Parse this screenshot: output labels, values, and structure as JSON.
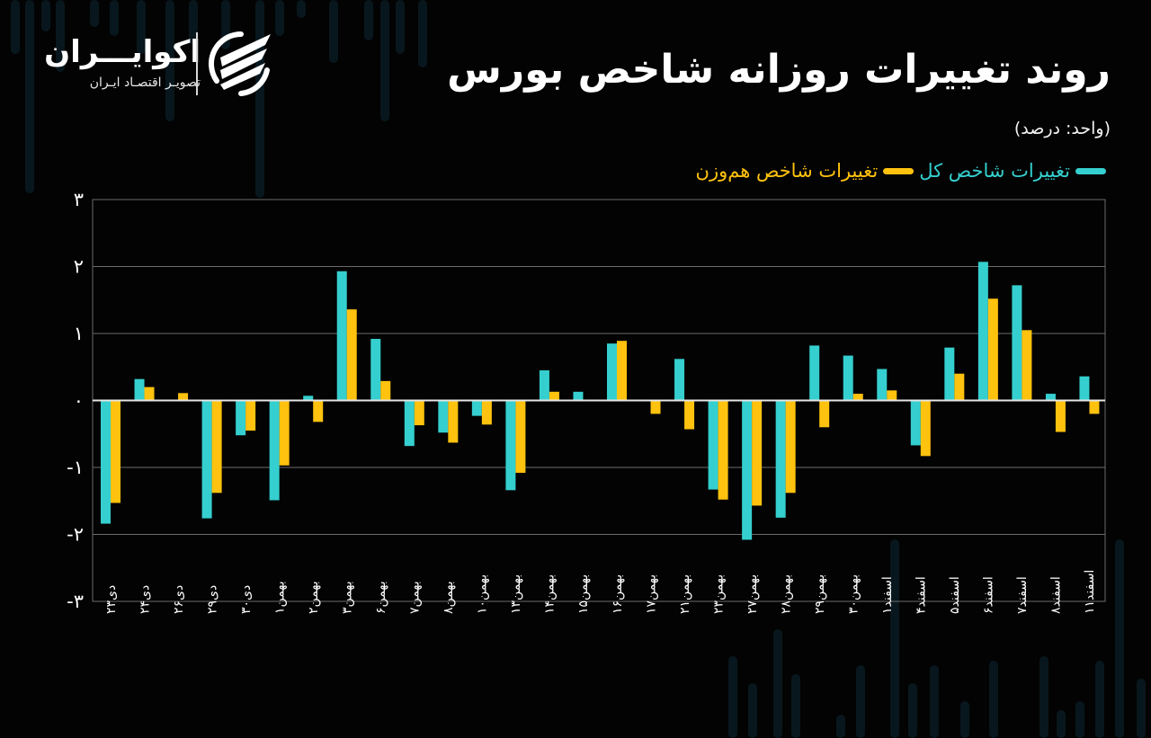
{
  "header": {
    "title": "روند تغییرات روزانه شاخص بورس",
    "unit_label": "(واحد: درصد)"
  },
  "logo": {
    "name": "اکوایـــران",
    "tagline": "تصویـر اقتصـاد ایـران",
    "icon": "ecoiran-logo-icon"
  },
  "legend": [
    {
      "label": "تغییرات شاخص کل",
      "color": "#35CFCF"
    },
    {
      "label": "تغییرات شاخص هم‌وزن",
      "color": "#FFC20E"
    }
  ],
  "colors": {
    "background": "#030303",
    "grid": "#6b6b6b",
    "zero_line": "#e6e6e6",
    "series_total": "#35CFCF",
    "series_equal": "#FFC20E"
  },
  "chart_data": {
    "type": "bar",
    "title": "روند تغییرات روزانه شاخص بورس",
    "subtitle": "(واحد: درصد)",
    "xlabel": "",
    "ylabel": "درصد",
    "ylim": [
      -3,
      3
    ],
    "yticks": [
      3,
      2,
      1,
      0,
      -1,
      -2,
      -3
    ],
    "ytick_labels": [
      "۳",
      "۲",
      "۱",
      "۰",
      "-۱",
      "-۲",
      "-۳"
    ],
    "grid": true,
    "legend_position": "top-right",
    "categories": [
      "دی۲۳",
      "دی۲۴",
      "دی۲۶",
      "دی۲۹",
      "دی۳۰",
      "بهمن۱",
      "بهمن۲",
      "بهمن۳",
      "بهمن۶",
      "بهمن۷",
      "بهمن۸",
      "بهمن۱۰",
      "بهمن۱۳",
      "بهمن۱۴",
      "بهمن۱۵",
      "بهمن۱۶",
      "بهمن۱۷",
      "بهمن۲۱",
      "بهمن۲۳",
      "بهمن۲۷",
      "بهمن۲۸",
      "بهمن۲۹",
      "بهمن۳۰",
      "اسفند۱",
      "اسفند۴",
      "اسفند۵",
      "اسفند۶",
      "اسفند۷",
      "اسفند۸",
      "اسفند۱۱"
    ],
    "series": [
      {
        "name": "تغییرات شاخص کل",
        "color": "#35CFCF",
        "values": [
          -1.84,
          0.32,
          0.01,
          -1.76,
          -0.52,
          -1.49,
          0.07,
          1.93,
          0.92,
          -0.68,
          -0.48,
          -0.23,
          -1.34,
          0.45,
          0.13,
          0.85,
          0.0,
          0.62,
          -1.33,
          -2.08,
          -1.75,
          0.82,
          0.67,
          0.47,
          -0.67,
          0.79,
          2.07,
          1.72,
          0.1,
          0.36
        ]
      },
      {
        "name": "تغییرات شاخص هم‌وزن",
        "color": "#FFC20E",
        "values": [
          -1.53,
          0.2,
          0.11,
          -1.38,
          -0.45,
          -0.97,
          -0.32,
          1.36,
          0.29,
          -0.37,
          -0.63,
          -0.36,
          -1.08,
          0.13,
          0.0,
          0.89,
          -0.2,
          -0.43,
          -1.48,
          -1.57,
          -1.38,
          -0.4,
          0.1,
          0.15,
          -0.83,
          0.4,
          1.52,
          1.05,
          -0.47,
          -0.2
        ]
      }
    ]
  }
}
